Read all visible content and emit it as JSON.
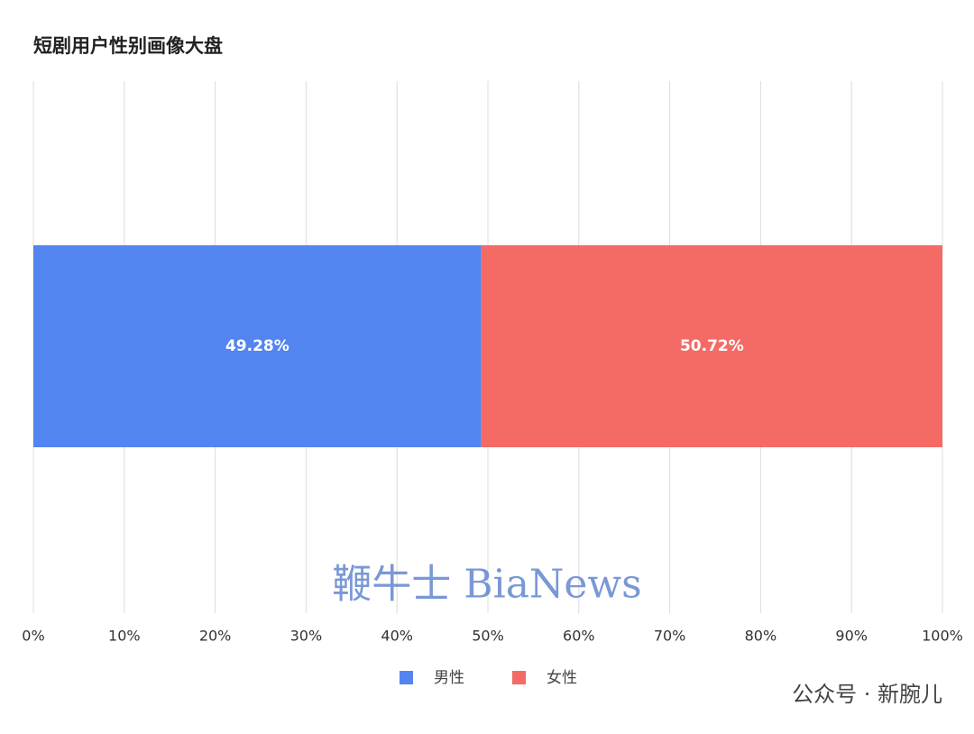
{
  "chart_data": {
    "type": "stacked_barh",
    "title": "短剧用户性别画像大盘",
    "categories": [
      null
    ],
    "series": [
      {
        "name": "男性",
        "color": "#5385f0",
        "values": [
          49.28
        ],
        "value_labels": [
          "49.28%"
        ]
      },
      {
        "name": "女性",
        "color": "#f46b66",
        "values": [
          50.72
        ],
        "value_labels": [
          "50.72%"
        ]
      }
    ],
    "xlim": [
      0,
      100
    ],
    "xticks": [
      {
        "value": 0,
        "label": "0%"
      },
      {
        "value": 10,
        "label": "10%"
      },
      {
        "value": 20,
        "label": "20%"
      },
      {
        "value": 30,
        "label": "30%"
      },
      {
        "value": 40,
        "label": "40%"
      },
      {
        "value": 50,
        "label": "50%"
      },
      {
        "value": 60,
        "label": "60%"
      },
      {
        "value": 70,
        "label": "70%"
      },
      {
        "value": 80,
        "label": "80%"
      },
      {
        "value": 90,
        "label": "90%"
      },
      {
        "value": 100,
        "label": "100%"
      }
    ],
    "grid": true,
    "legend": "bottom",
    "annotations": [
      "鞭牛士 BiaNews",
      "公众号 · 新腕儿"
    ]
  }
}
